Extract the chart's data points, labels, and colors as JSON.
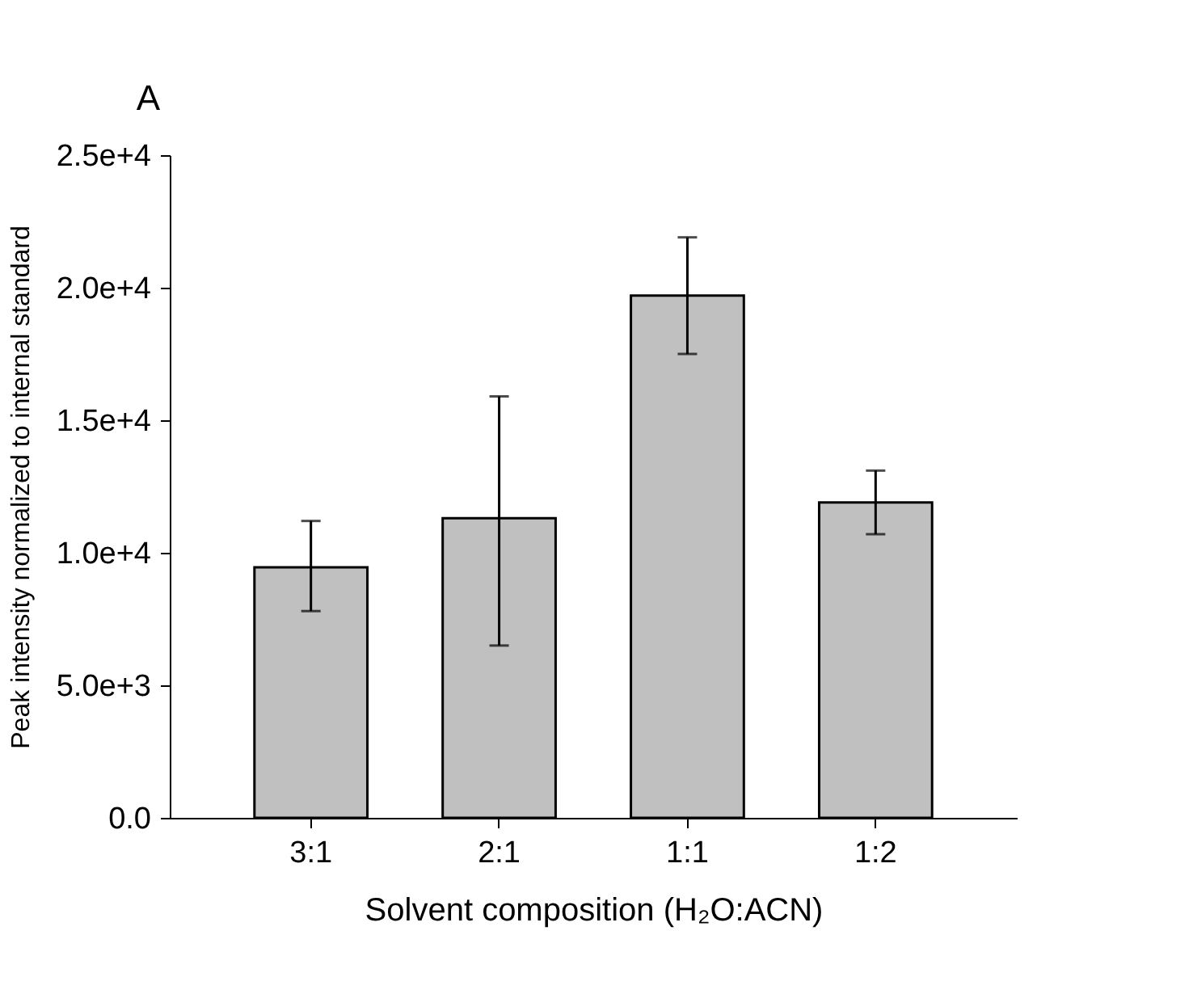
{
  "chart_data": {
    "type": "bar",
    "title": "A",
    "xlabel": "Solvent composition (H₂O:ACN)",
    "ylabel": "Peak intensity normalized to internal standard",
    "categories": [
      "3:1",
      "2:1",
      "1:1",
      "1:2"
    ],
    "values": [
      9450,
      11300,
      19700,
      11900
    ],
    "errors": [
      [
        7800,
        11200
      ],
      [
        6500,
        15900
      ],
      [
        17500,
        21900
      ],
      [
        10700,
        13100
      ]
    ],
    "color": "#c0c0c0",
    "ylim": [
      0,
      25000
    ],
    "yticks": [
      {
        "value": 0,
        "label": "0.0"
      },
      {
        "value": 5000,
        "label": "5.0e+3"
      },
      {
        "value": 10000,
        "label": "1.0e+4"
      },
      {
        "value": 15000,
        "label": "1.5e+4"
      },
      {
        "value": 20000,
        "label": "2.0e+4"
      },
      {
        "value": 25000,
        "label": "2.5e+4"
      }
    ],
    "grid": false
  }
}
